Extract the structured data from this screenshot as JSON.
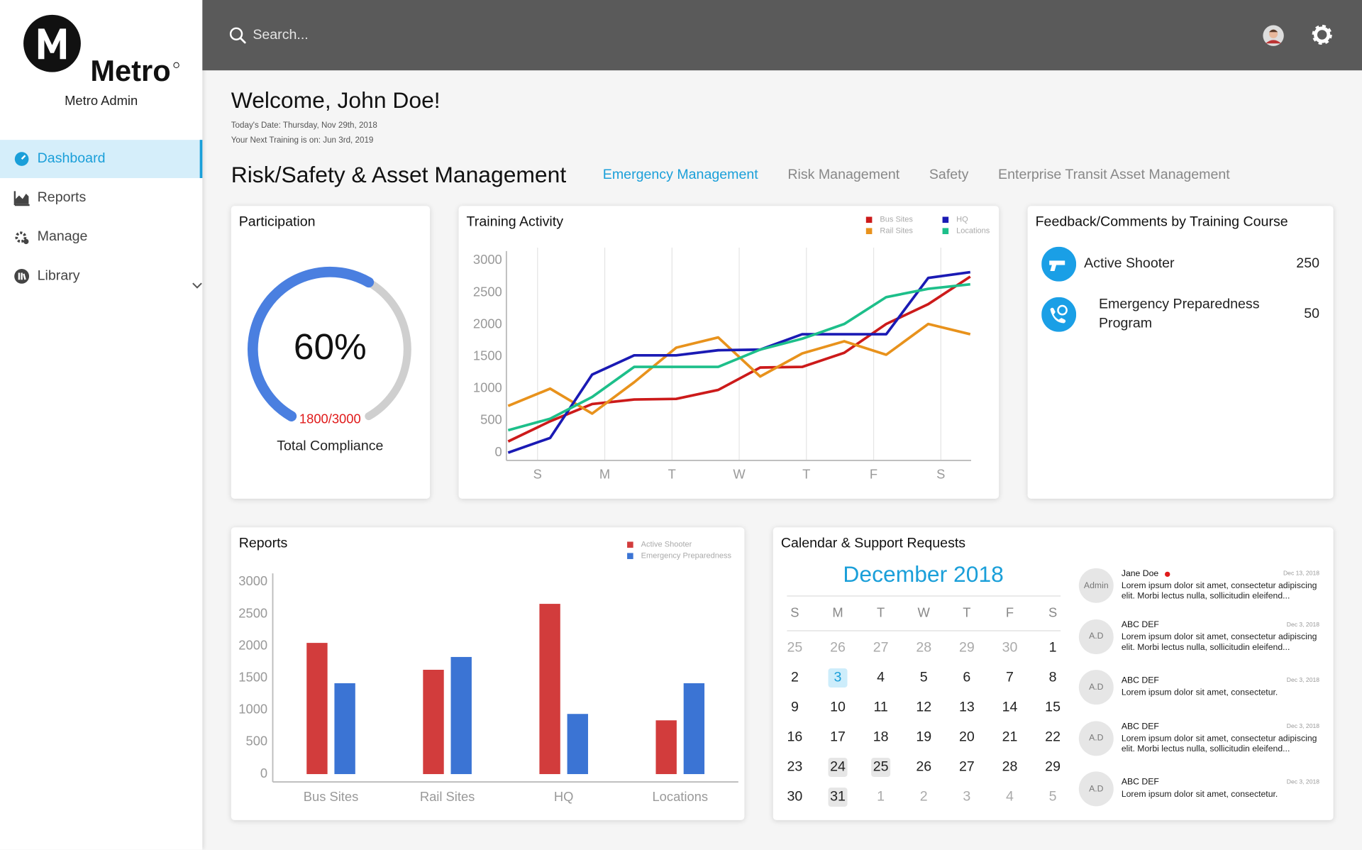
{
  "sidebar": {
    "brand": "Metro",
    "subtitle": "Metro Admin",
    "nav": [
      "Dashboard",
      "Reports",
      "Manage",
      "Library"
    ],
    "active_index": 0
  },
  "header": {
    "search_placeholder": "Search..."
  },
  "welcome": {
    "title": "Welcome, John Doe!",
    "date": "Today's Date: Thursday, Nov 29th, 2018",
    "next_training": "Your Next Training is on: Jun 3rd, 2019"
  },
  "section": {
    "title": "Risk/Safety & Asset Management",
    "tabs": [
      "Emergency Management",
      "Risk Management",
      "Safety",
      "Enterprise Transit Asset Management"
    ],
    "active_tab": 0
  },
  "participation": {
    "type": "gauge",
    "title": "Participation",
    "value": 60,
    "value_label": "60%",
    "ratio": "1800/3000",
    "caption": "Total Compliance",
    "color": "#4a7fe0"
  },
  "training_activity": {
    "type": "line",
    "title": "Training Activity",
    "x": [
      0,
      1,
      2,
      3,
      4,
      5,
      6,
      7,
      8,
      9,
      10,
      11
    ],
    "xlim": [
      0,
      11
    ],
    "xticks": [
      {
        "value": 0.7,
        "label": "S"
      },
      {
        "value": 2.3,
        "label": "M"
      },
      {
        "value": 3.9,
        "label": "T"
      },
      {
        "value": 5.5,
        "label": "W"
      },
      {
        "value": 7.1,
        "label": "T"
      },
      {
        "value": 8.7,
        "label": "F"
      },
      {
        "value": 10.3,
        "label": "S"
      }
    ],
    "ylim": [
      0,
      3000
    ],
    "yticks": [
      0,
      500,
      1000,
      1500,
      2000,
      2500,
      3000
    ],
    "grid": true,
    "series": [
      {
        "name": "Bus Sites",
        "color": "#cc1a1a",
        "values": [
          175,
          490,
          760,
          830,
          840,
          980,
          1330,
          1340,
          1560,
          2010,
          2320,
          2750
        ]
      },
      {
        "name": "Rail Sites",
        "color": "#e8921c",
        "values": [
          730,
          1000,
          610,
          1100,
          1640,
          1800,
          1190,
          1550,
          1740,
          1530,
          2010,
          1850
        ]
      },
      {
        "name": "HQ",
        "color": "#1a1ab4",
        "values": [
          0,
          230,
          1220,
          1520,
          1520,
          1600,
          1610,
          1850,
          1850,
          1850,
          2730,
          2820
        ]
      },
      {
        "name": "Locations",
        "color": "#1dbf8a",
        "values": [
          350,
          530,
          870,
          1340,
          1340,
          1340,
          1610,
          1780,
          2010,
          2430,
          2560,
          2630
        ]
      }
    ]
  },
  "feedback": {
    "title": "Feedback/Comments by Training Course",
    "items": [
      {
        "name": "Active Shooter",
        "count": 250
      },
      {
        "name": "Emergency Preparedness Program",
        "count": 50
      }
    ]
  },
  "reports": {
    "type": "bar",
    "title": "Reports",
    "categories": [
      "Bus Sites",
      "Rail Sites",
      "HQ",
      "Locations"
    ],
    "ylim": [
      0,
      3000
    ],
    "yticks": [
      0,
      500,
      1000,
      1500,
      2000,
      2500,
      3000
    ],
    "series": [
      {
        "name": "Active Shooter",
        "color": "#d23c3c",
        "values": [
          2050,
          1630,
          2660,
          840
        ]
      },
      {
        "name": "Emergency Preparedness",
        "color": "#3b74d4",
        "values": [
          1420,
          1830,
          940,
          1420
        ]
      }
    ]
  },
  "calendar": {
    "title": "Calendar & Support Requests",
    "month": "December 2018",
    "weekdays": [
      "S",
      "M",
      "T",
      "W",
      "T",
      "F",
      "S"
    ],
    "weeks": [
      [
        25,
        26,
        27,
        28,
        29,
        30,
        1
      ],
      [
        2,
        3,
        4,
        5,
        6,
        7,
        8
      ],
      [
        9,
        10,
        11,
        12,
        13,
        14,
        15
      ],
      [
        16,
        17,
        18,
        19,
        20,
        21,
        22
      ],
      [
        23,
        24,
        25,
        26,
        27,
        28,
        29
      ],
      [
        30,
        31,
        1,
        2,
        3,
        4,
        5
      ]
    ],
    "today": 3,
    "marked": [
      24,
      25,
      31
    ]
  },
  "messages": [
    {
      "initials": "Admin",
      "name": "Jane Doe",
      "unread": true,
      "date": "Dec 13, 2018",
      "text": "Lorem ipsum dolor sit amet, consectetur adipiscing elit. Morbi lectus nulla, sollicitudin eleifend..."
    },
    {
      "initials": "A.D",
      "name": "ABC DEF",
      "unread": false,
      "date": "Dec 3, 2018",
      "text": "Lorem ipsum dolor sit amet, consectetur adipiscing elit. Morbi lectus nulla, sollicitudin eleifend..."
    },
    {
      "initials": "A.D",
      "name": "ABC DEF",
      "unread": false,
      "date": "Dec 3, 2018",
      "text": "Lorem ipsum dolor sit amet, consectetur."
    },
    {
      "initials": "A.D",
      "name": "ABC DEF",
      "unread": false,
      "date": "Dec 3, 2018",
      "text": "Lorem ipsum dolor sit amet, consectetur adipiscing elit. Morbi lectus nulla, sollicitudin eleifend..."
    },
    {
      "initials": "A.D",
      "name": "ABC DEF",
      "unread": false,
      "date": "Dec 3, 2018",
      "text": "Lorem ipsum dolor sit amet, consectetur."
    }
  ]
}
